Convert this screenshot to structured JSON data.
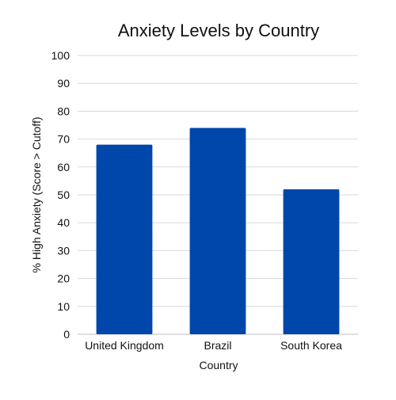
{
  "chart_data": {
    "type": "bar",
    "title": "Anxiety Levels by Country",
    "xlabel": "Country",
    "ylabel": "% High Anxiety (Score > Cutoff)",
    "categories": [
      "United Kingdom",
      "Brazil",
      "South Korea"
    ],
    "values": [
      68,
      74,
      52
    ],
    "ylim": [
      0,
      100
    ],
    "yticks": [
      0,
      10,
      20,
      30,
      40,
      50,
      60,
      70,
      80,
      90,
      100
    ],
    "grid": true,
    "bar_color": "#0047AB"
  }
}
